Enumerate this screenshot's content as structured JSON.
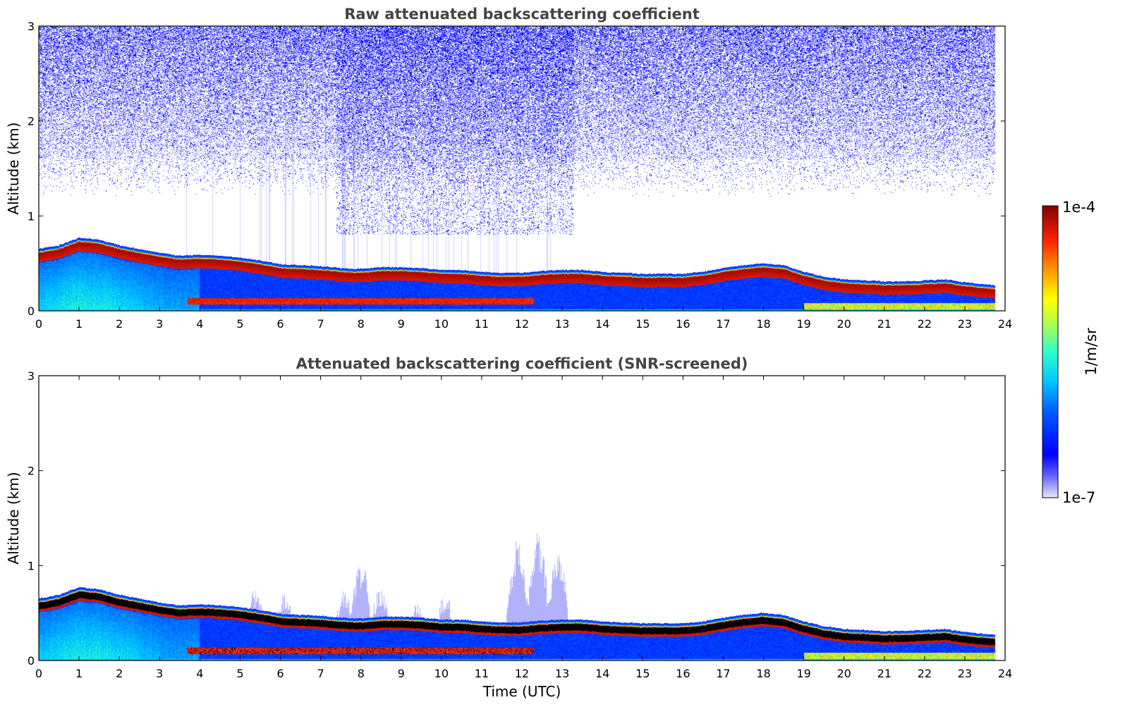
{
  "chart_data": [
    {
      "type": "heatmap",
      "title": "Raw attenuated backscattering coefficient",
      "xlabel": "",
      "ylabel": "Altitude (km)",
      "xlim": [
        0,
        24
      ],
      "ylim": [
        0,
        3
      ],
      "x_ticks": [
        "0",
        "1",
        "2",
        "3",
        "4",
        "5",
        "6",
        "7",
        "8",
        "9",
        "10",
        "11",
        "12",
        "13",
        "14",
        "15",
        "16",
        "17",
        "18",
        "19",
        "20",
        "21",
        "22",
        "23",
        "24"
      ],
      "y_ticks": [
        "0",
        "1",
        "2",
        "3"
      ],
      "data_end_time": 23.75,
      "noise_fill": true,
      "layer_top_km": [
        [
          0,
          0.62
        ],
        [
          0.5,
          0.66
        ],
        [
          1,
          0.74
        ],
        [
          1.5,
          0.72
        ],
        [
          2,
          0.66
        ],
        [
          2.5,
          0.62
        ],
        [
          3,
          0.58
        ],
        [
          3.5,
          0.55
        ],
        [
          4,
          0.56
        ],
        [
          4.5,
          0.55
        ],
        [
          5,
          0.53
        ],
        [
          5.5,
          0.5
        ],
        [
          6,
          0.46
        ],
        [
          6.5,
          0.45
        ],
        [
          7,
          0.44
        ],
        [
          7.5,
          0.42
        ],
        [
          8,
          0.41
        ],
        [
          8.5,
          0.43
        ],
        [
          9,
          0.43
        ],
        [
          9.5,
          0.42
        ],
        [
          10,
          0.4
        ],
        [
          10.5,
          0.4
        ],
        [
          11,
          0.38
        ],
        [
          11.5,
          0.37
        ],
        [
          12,
          0.37
        ],
        [
          12.5,
          0.39
        ],
        [
          13,
          0.4
        ],
        [
          13.5,
          0.4
        ],
        [
          14,
          0.38
        ],
        [
          14.5,
          0.37
        ],
        [
          15,
          0.36
        ],
        [
          15.5,
          0.36
        ],
        [
          16,
          0.36
        ],
        [
          16.5,
          0.38
        ],
        [
          17,
          0.42
        ],
        [
          17.5,
          0.45
        ],
        [
          18,
          0.47
        ],
        [
          18.5,
          0.45
        ],
        [
          19,
          0.38
        ],
        [
          19.5,
          0.33
        ],
        [
          20,
          0.3
        ],
        [
          20.5,
          0.29
        ],
        [
          21,
          0.28
        ],
        [
          21.5,
          0.28
        ],
        [
          22,
          0.29
        ],
        [
          22.5,
          0.3
        ],
        [
          23,
          0.27
        ],
        [
          23.75,
          0.24
        ]
      ],
      "lower_layer_km": [
        [
          3.7,
          0.1
        ],
        [
          12.3,
          0.1
        ]
      ],
      "colorbar": {
        "min_label": "1e-7",
        "max_label": "1e-4",
        "units": "1/m/sr"
      }
    },
    {
      "type": "heatmap",
      "title": "Attenuated backscattering coefficient (SNR-screened)",
      "xlabel": "Time (UTC)",
      "ylabel": "Altitude (km)",
      "xlim": [
        0,
        24
      ],
      "ylim": [
        0,
        3
      ],
      "x_ticks": [
        "0",
        "1",
        "2",
        "3",
        "4",
        "5",
        "6",
        "7",
        "8",
        "9",
        "10",
        "11",
        "12",
        "13",
        "14",
        "15",
        "16",
        "17",
        "18",
        "19",
        "20",
        "21",
        "22",
        "23",
        "24"
      ],
      "y_ticks": [
        "0",
        "1",
        "2",
        "3"
      ],
      "data_end_time": 23.75,
      "noise_fill": false,
      "saturation_color": "#000000",
      "faint_plumes": [
        [
          5.4,
          0.78
        ],
        [
          6.1,
          0.7
        ],
        [
          7.6,
          0.75
        ],
        [
          8.0,
          1.05
        ],
        [
          8.5,
          0.8
        ],
        [
          9.4,
          0.6
        ],
        [
          10.1,
          0.7
        ],
        [
          11.9,
          1.3
        ],
        [
          12.4,
          1.35
        ],
        [
          12.9,
          1.15
        ]
      ]
    }
  ]
}
